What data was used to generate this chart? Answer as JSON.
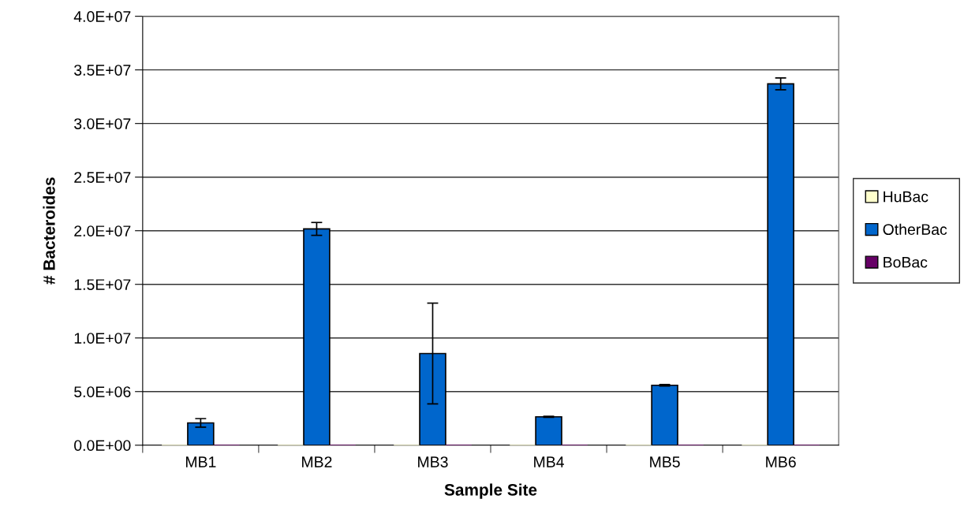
{
  "chart_data": {
    "type": "bar",
    "xlabel": "Sample Site",
    "ylabel": "# Bacteroides",
    "categories": [
      "MB1",
      "MB2",
      "MB3",
      "MB4",
      "MB5",
      "MB6"
    ],
    "series": [
      {
        "name": "HuBac",
        "color": "#ffffcc",
        "values": [
          0,
          0,
          0,
          0,
          0,
          0
        ]
      },
      {
        "name": "OtherBac",
        "color": "#0066cc",
        "values": [
          2080000,
          20170000,
          8550000,
          2650000,
          5590000,
          33700000
        ],
        "errors": [
          400000,
          600000,
          4700000,
          50000,
          70000,
          550000
        ]
      },
      {
        "name": "BoBac",
        "color": "#660066",
        "values": [
          0,
          0,
          0,
          0,
          0,
          0
        ]
      }
    ],
    "ylim": [
      0,
      40000000
    ],
    "yticks": [
      {
        "value": 0,
        "label": "0.0E+00"
      },
      {
        "value": 5000000,
        "label": "5.0E+06"
      },
      {
        "value": 10000000,
        "label": "1.0E+07"
      },
      {
        "value": 15000000,
        "label": "1.5E+07"
      },
      {
        "value": 20000000,
        "label": "2.0E+07"
      },
      {
        "value": 25000000,
        "label": "2.5E+07"
      },
      {
        "value": 30000000,
        "label": "3.0E+07"
      },
      {
        "value": 35000000,
        "label": "3.5E+07"
      },
      {
        "value": 40000000,
        "label": "4.0E+07"
      }
    ],
    "grid": "y",
    "legend": "right"
  }
}
